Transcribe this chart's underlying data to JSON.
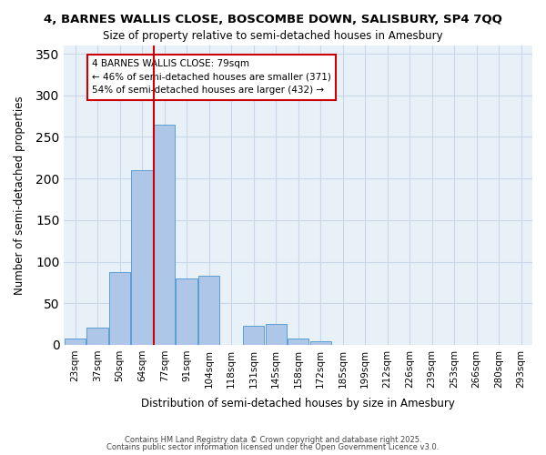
{
  "title": "4, BARNES WALLIS CLOSE, BOSCOMBE DOWN, SALISBURY, SP4 7QQ",
  "subtitle": "Size of property relative to semi-detached houses in Amesbury",
  "xlabel": "Distribution of semi-detached houses by size in Amesbury",
  "ylabel": "Number of semi-detached properties",
  "bar_color": "#aec6e8",
  "bar_edge_color": "#5a9fd4",
  "background_color": "#ffffff",
  "axes_bg_color": "#e8f0f8",
  "grid_color": "#c8d8e8",
  "categories": [
    "23sqm",
    "37sqm",
    "50sqm",
    "64sqm",
    "77sqm",
    "91sqm",
    "104sqm",
    "118sqm",
    "131sqm",
    "145sqm",
    "158sqm",
    "172sqm",
    "185sqm",
    "199sqm",
    "212sqm",
    "226sqm",
    "239sqm",
    "253sqm",
    "266sqm",
    "280sqm",
    "293sqm"
  ],
  "bar_values": [
    8,
    21,
    87,
    210,
    265,
    80,
    83,
    0,
    23,
    25,
    8,
    4,
    0,
    0,
    0,
    0,
    0,
    0,
    0,
    0,
    0
  ],
  "ylim": [
    0,
    360
  ],
  "yticks": [
    0,
    50,
    100,
    150,
    200,
    250,
    300,
    350
  ],
  "vline_x": 3.53,
  "vline_color": "#cc0000",
  "annotation_title": "4 BARNES WALLIS CLOSE: 79sqm",
  "annotation_line1": "← 46% of semi-detached houses are smaller (371)",
  "annotation_line2": "54% of semi-detached houses are larger (432) →",
  "annotation_box_color": "#ffffff",
  "annotation_box_edge": "#cc0000",
  "footer1": "Contains HM Land Registry data © Crown copyright and database right 2025.",
  "footer2": "Contains public sector information licensed under the Open Government Licence v3.0."
}
